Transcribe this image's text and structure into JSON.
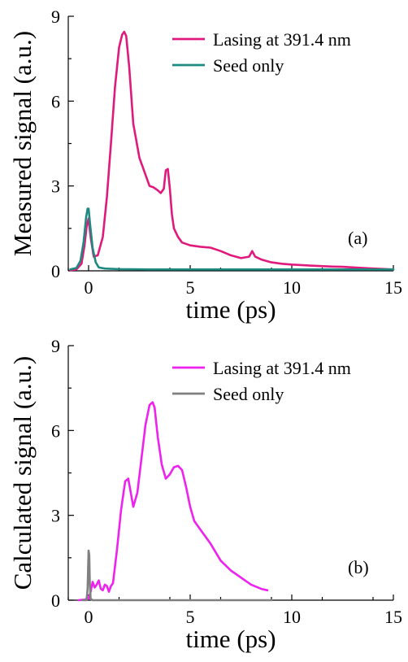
{
  "chart_data": [
    {
      "type": "line",
      "panel_label": "(a)",
      "xlabel": "time (ps)",
      "ylabel": "Measured signal (a.u.)",
      "xlim": [
        -1,
        15
      ],
      "ylim": [
        0,
        9
      ],
      "xticks": [
        0,
        5,
        10,
        15
      ],
      "yticks": [
        0,
        3,
        6,
        9
      ],
      "legend_position": "top-right",
      "series": [
        {
          "name": "Lasing at 391.4 nm",
          "color": "#e01a7d",
          "x": [
            -0.9,
            -0.6,
            -0.35,
            -0.2,
            -0.1,
            0.0,
            0.1,
            0.25,
            0.45,
            0.7,
            0.9,
            1.1,
            1.3,
            1.5,
            1.65,
            1.75,
            1.85,
            2.0,
            2.2,
            2.5,
            2.8,
            3.0,
            3.2,
            3.4,
            3.55,
            3.7,
            3.8,
            3.9,
            4.0,
            4.1,
            4.2,
            4.4,
            4.6,
            5.0,
            5.5,
            6.0,
            6.5,
            7.0,
            7.5,
            7.9,
            8.05,
            8.2,
            8.5,
            9.0,
            9.5,
            10.0,
            11.0,
            12.0,
            12.5,
            13.0,
            14.0,
            15.0
          ],
          "y": [
            0.02,
            0.05,
            0.25,
            0.9,
            1.55,
            1.85,
            1.2,
            0.5,
            0.55,
            1.2,
            2.6,
            4.5,
            6.5,
            7.9,
            8.35,
            8.45,
            8.3,
            7.2,
            5.2,
            4.0,
            3.4,
            3.0,
            2.95,
            2.85,
            2.75,
            2.9,
            3.55,
            3.6,
            2.9,
            2.0,
            1.5,
            1.2,
            1.0,
            0.9,
            0.85,
            0.82,
            0.7,
            0.55,
            0.45,
            0.5,
            0.7,
            0.5,
            0.4,
            0.3,
            0.25,
            0.22,
            0.18,
            0.15,
            0.14,
            0.12,
            0.08,
            0.05
          ]
        },
        {
          "name": "Seed only",
          "color": "#1f8a80",
          "x": [
            -0.9,
            -0.6,
            -0.4,
            -0.25,
            -0.12,
            -0.05,
            0.0,
            0.08,
            0.2,
            0.35,
            0.5,
            0.8,
            1.5,
            3.0,
            5.0,
            7.0,
            9.0,
            11.0,
            13.0,
            15.0
          ],
          "y": [
            0.05,
            0.1,
            0.35,
            1.0,
            1.9,
            2.2,
            2.2,
            1.6,
            0.8,
            0.3,
            0.12,
            0.08,
            0.06,
            0.05,
            0.05,
            0.05,
            0.05,
            0.05,
            0.05,
            0.05
          ]
        }
      ]
    },
    {
      "type": "line",
      "panel_label": "(b)",
      "xlabel": "time (ps)",
      "ylabel": "Calculated signal (a.u.)",
      "xlim": [
        -1,
        15
      ],
      "ylim": [
        0,
        9
      ],
      "xticks": [
        0,
        5,
        10,
        15
      ],
      "yticks": [
        0,
        3,
        6,
        9
      ],
      "legend_position": "top-right",
      "series": [
        {
          "name": "Lasing at 391.4 nm",
          "color": "#ee22ee",
          "x": [
            -0.5,
            -0.2,
            0.0,
            0.1,
            0.2,
            0.3,
            0.4,
            0.5,
            0.6,
            0.7,
            0.8,
            0.9,
            1.0,
            1.1,
            1.2,
            1.4,
            1.6,
            1.8,
            1.95,
            2.05,
            2.2,
            2.4,
            2.6,
            2.8,
            3.0,
            3.15,
            3.25,
            3.4,
            3.6,
            3.8,
            4.0,
            4.2,
            4.4,
            4.6,
            4.8,
            5.0,
            5.2,
            5.5,
            6.0,
            6.5,
            7.0,
            7.5,
            8.0,
            8.5,
            8.8
          ],
          "y": [
            0.0,
            0.02,
            0.05,
            0.3,
            0.65,
            0.45,
            0.55,
            0.7,
            0.4,
            0.35,
            0.55,
            0.5,
            0.3,
            0.5,
            0.6,
            1.8,
            3.2,
            4.2,
            4.3,
            3.9,
            3.3,
            3.8,
            5.0,
            6.2,
            6.9,
            7.0,
            6.8,
            5.8,
            4.8,
            4.3,
            4.45,
            4.7,
            4.75,
            4.6,
            4.0,
            3.3,
            2.8,
            2.5,
            2.0,
            1.4,
            1.05,
            0.8,
            0.55,
            0.4,
            0.35
          ]
        },
        {
          "name": "Seed only",
          "color": "#808080",
          "x": [
            -0.3,
            -0.1,
            -0.05,
            0.0,
            0.03,
            0.06,
            0.1,
            0.2,
            1.0,
            3.0,
            5.0,
            7.0,
            9.0
          ],
          "y": [
            0.0,
            0.0,
            0.4,
            1.75,
            1.6,
            0.6,
            0.05,
            0.0,
            0.0,
            0.0,
            0.0,
            0.0,
            0.0
          ]
        }
      ]
    }
  ]
}
